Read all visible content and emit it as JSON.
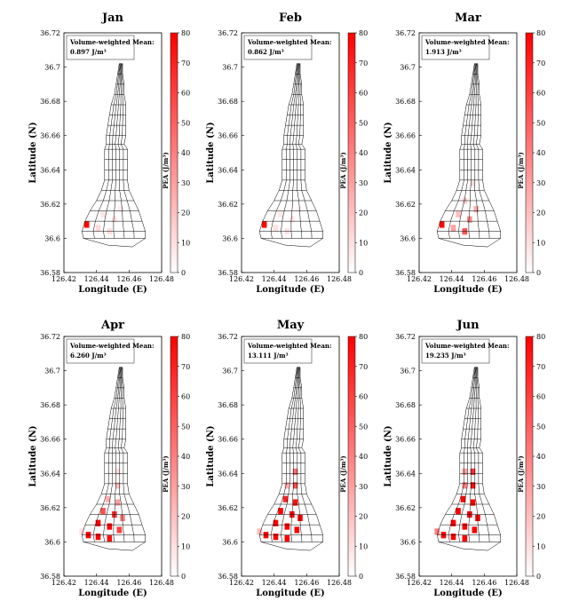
{
  "chart_data": {
    "type": "heatmap",
    "xlabel": "Longitude (E)",
    "ylabel": "Latitude (N)",
    "colorbar_label": "PEA (J/m³)",
    "colorbar_ticks": [
      0,
      10,
      20,
      30,
      40,
      50,
      60,
      70,
      80
    ],
    "colorbar_range": [
      0,
      80
    ],
    "colormap": [
      "#ffffff",
      "#ff0000"
    ],
    "grid_color": "#000000",
    "xlim": [
      126.42,
      126.48
    ],
    "ylim": [
      36.58,
      36.72
    ],
    "xticks": [
      "126.42",
      "126.44",
      "126.46",
      "126.48"
    ],
    "yticks": [
      "36.58",
      "36.6",
      "36.62",
      "36.64",
      "36.66",
      "36.68",
      "36.7",
      "36.72"
    ],
    "annotation_label": "Volume-weighted Mean:",
    "panels": [
      {
        "title": "Jan",
        "mean": "0.897",
        "unit": "J/m³",
        "cells": [
          {
            "lon": 126.434,
            "lat": 36.608,
            "value": 78
          },
          {
            "lon": 126.441,
            "lat": 36.606,
            "value": 12
          },
          {
            "lon": 126.448,
            "lat": 36.604,
            "value": 10
          },
          {
            "lon": 126.444,
            "lat": 36.614,
            "value": 8
          },
          {
            "lon": 126.451,
            "lat": 36.611,
            "value": 9
          },
          {
            "lon": 126.455,
            "lat": 36.617,
            "value": 6
          }
        ]
      },
      {
        "title": "Feb",
        "mean": "0.862",
        "unit": "J/m³",
        "cells": [
          {
            "lon": 126.434,
            "lat": 36.608,
            "value": 78
          },
          {
            "lon": 126.441,
            "lat": 36.606,
            "value": 10
          },
          {
            "lon": 126.448,
            "lat": 36.604,
            "value": 9
          },
          {
            "lon": 126.444,
            "lat": 36.614,
            "value": 7
          },
          {
            "lon": 126.451,
            "lat": 36.611,
            "value": 8
          },
          {
            "lon": 126.455,
            "lat": 36.617,
            "value": 5
          }
        ]
      },
      {
        "title": "Mar",
        "mean": "1.913",
        "unit": "J/m³",
        "cells": [
          {
            "lon": 126.434,
            "lat": 36.608,
            "value": 78
          },
          {
            "lon": 126.441,
            "lat": 36.606,
            "value": 30
          },
          {
            "lon": 126.448,
            "lat": 36.604,
            "value": 55
          },
          {
            "lon": 126.444,
            "lat": 36.614,
            "value": 20
          },
          {
            "lon": 126.451,
            "lat": 36.611,
            "value": 35
          },
          {
            "lon": 126.455,
            "lat": 36.617,
            "value": 25
          },
          {
            "lon": 126.448,
            "lat": 36.622,
            "value": 15
          },
          {
            "lon": 126.453,
            "lat": 36.632,
            "value": 10
          }
        ]
      },
      {
        "title": "Apr",
        "mean": "6.260",
        "unit": "J/m³",
        "cells": [
          {
            "lon": 126.431,
            "lat": 36.606,
            "value": 10
          },
          {
            "lon": 126.435,
            "lat": 36.604,
            "value": 80
          },
          {
            "lon": 126.441,
            "lat": 36.603,
            "value": 80
          },
          {
            "lon": 126.448,
            "lat": 36.602,
            "value": 75
          },
          {
            "lon": 126.441,
            "lat": 36.611,
            "value": 78
          },
          {
            "lon": 126.448,
            "lat": 36.609,
            "value": 80
          },
          {
            "lon": 126.454,
            "lat": 36.607,
            "value": 60
          },
          {
            "lon": 126.444,
            "lat": 36.618,
            "value": 55
          },
          {
            "lon": 126.451,
            "lat": 36.616,
            "value": 65
          },
          {
            "lon": 126.456,
            "lat": 36.614,
            "value": 40
          },
          {
            "lon": 126.447,
            "lat": 36.625,
            "value": 25
          },
          {
            "lon": 126.453,
            "lat": 36.623,
            "value": 30
          },
          {
            "lon": 126.453,
            "lat": 36.633,
            "value": 20
          },
          {
            "lon": 126.453,
            "lat": 36.641,
            "value": 10
          }
        ]
      },
      {
        "title": "May",
        "mean": "13.111",
        "unit": "J/m³",
        "cells": [
          {
            "lon": 126.431,
            "lat": 36.606,
            "value": 20
          },
          {
            "lon": 126.435,
            "lat": 36.604,
            "value": 80
          },
          {
            "lon": 126.441,
            "lat": 36.603,
            "value": 80
          },
          {
            "lon": 126.448,
            "lat": 36.602,
            "value": 80
          },
          {
            "lon": 126.441,
            "lat": 36.611,
            "value": 80
          },
          {
            "lon": 126.448,
            "lat": 36.609,
            "value": 80
          },
          {
            "lon": 126.454,
            "lat": 36.607,
            "value": 80
          },
          {
            "lon": 126.444,
            "lat": 36.618,
            "value": 80
          },
          {
            "lon": 126.451,
            "lat": 36.616,
            "value": 80
          },
          {
            "lon": 126.456,
            "lat": 36.614,
            "value": 80
          },
          {
            "lon": 126.447,
            "lat": 36.625,
            "value": 70
          },
          {
            "lon": 126.453,
            "lat": 36.623,
            "value": 75
          },
          {
            "lon": 126.453,
            "lat": 36.633,
            "value": 55
          },
          {
            "lon": 126.453,
            "lat": 36.641,
            "value": 45
          },
          {
            "lon": 126.448,
            "lat": 36.633,
            "value": 25
          }
        ]
      },
      {
        "title": "Jun",
        "mean": "19.235",
        "unit": "J/m³",
        "cells": [
          {
            "lon": 126.431,
            "lat": 36.606,
            "value": 40
          },
          {
            "lon": 126.435,
            "lat": 36.604,
            "value": 80
          },
          {
            "lon": 126.441,
            "lat": 36.603,
            "value": 80
          },
          {
            "lon": 126.448,
            "lat": 36.602,
            "value": 80
          },
          {
            "lon": 126.441,
            "lat": 36.611,
            "value": 80
          },
          {
            "lon": 126.448,
            "lat": 36.609,
            "value": 80
          },
          {
            "lon": 126.454,
            "lat": 36.607,
            "value": 80
          },
          {
            "lon": 126.444,
            "lat": 36.618,
            "value": 80
          },
          {
            "lon": 126.451,
            "lat": 36.616,
            "value": 80
          },
          {
            "lon": 126.456,
            "lat": 36.614,
            "value": 80
          },
          {
            "lon": 126.447,
            "lat": 36.625,
            "value": 80
          },
          {
            "lon": 126.453,
            "lat": 36.623,
            "value": 80
          },
          {
            "lon": 126.453,
            "lat": 36.633,
            "value": 75
          },
          {
            "lon": 126.453,
            "lat": 36.641,
            "value": 65
          },
          {
            "lon": 126.448,
            "lat": 36.633,
            "value": 40
          },
          {
            "lon": 126.448,
            "lat": 36.641,
            "value": 30
          }
        ]
      }
    ]
  }
}
